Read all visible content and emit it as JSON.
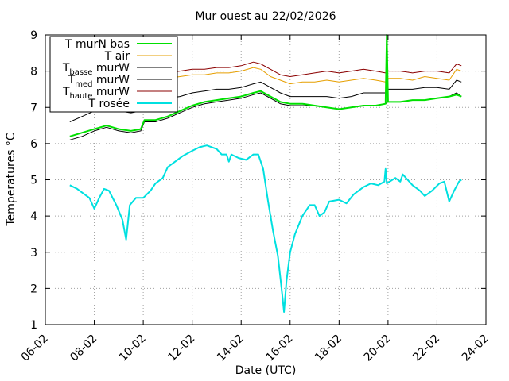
{
  "chart_data": {
    "type": "line",
    "title": "Mur ouest au 22/02/2026",
    "xlabel": "Date (UTC)",
    "ylabel": "Temperatures °C",
    "xlim": [
      0,
      18
    ],
    "ylim": [
      1,
      9
    ],
    "x_ticks": [
      {
        "v": 0,
        "label": "06-02"
      },
      {
        "v": 2,
        "label": "08-02"
      },
      {
        "v": 4,
        "label": "10-02"
      },
      {
        "v": 6,
        "label": "12-02"
      },
      {
        "v": 8,
        "label": "14-02"
      },
      {
        "v": 10,
        "label": "16-02"
      },
      {
        "v": 12,
        "label": "18-02"
      },
      {
        "v": 14,
        "label": "20-02"
      },
      {
        "v": 16,
        "label": "22-02"
      },
      {
        "v": 18,
        "label": "24-02"
      }
    ],
    "y_ticks": [
      1,
      2,
      3,
      4,
      5,
      6,
      7,
      8,
      9
    ],
    "grid": true,
    "legend_position": "top-left",
    "series": [
      {
        "name": "T murN bas",
        "color": "#00e000",
        "width": 2,
        "points": [
          [
            1,
            6.2
          ],
          [
            1.5,
            6.3
          ],
          [
            2,
            6.4
          ],
          [
            2.5,
            6.5
          ],
          [
            3,
            6.4
          ],
          [
            3.5,
            6.35
          ],
          [
            3.9,
            6.4
          ],
          [
            4.05,
            6.65
          ],
          [
            4.5,
            6.65
          ],
          [
            5,
            6.75
          ],
          [
            5.5,
            6.9
          ],
          [
            6,
            7.05
          ],
          [
            6.5,
            7.15
          ],
          [
            7,
            7.2
          ],
          [
            7.5,
            7.25
          ],
          [
            8,
            7.3
          ],
          [
            8.5,
            7.4
          ],
          [
            8.8,
            7.45
          ],
          [
            9.2,
            7.3
          ],
          [
            9.6,
            7.15
          ],
          [
            10,
            7.1
          ],
          [
            10.5,
            7.1
          ],
          [
            11,
            7.05
          ],
          [
            11.5,
            7.0
          ],
          [
            12,
            6.95
          ],
          [
            12.5,
            7.0
          ],
          [
            13,
            7.05
          ],
          [
            13.5,
            7.05
          ],
          [
            13.9,
            7.1
          ],
          [
            13.95,
            9.0
          ],
          [
            14.0,
            7.15
          ],
          [
            14.5,
            7.15
          ],
          [
            15,
            7.2
          ],
          [
            15.5,
            7.2
          ],
          [
            16,
            7.25
          ],
          [
            16.5,
            7.3
          ],
          [
            16.8,
            7.35
          ],
          [
            17,
            7.3
          ]
        ]
      },
      {
        "name": "T air",
        "color": "#e69f00",
        "width": 1,
        "points": [
          [
            1,
            7.0
          ],
          [
            1.5,
            7.2
          ],
          [
            2,
            7.35
          ],
          [
            2.5,
            7.45
          ],
          [
            3,
            7.3
          ],
          [
            3.5,
            7.25
          ],
          [
            3.9,
            7.3
          ],
          [
            4.05,
            7.65
          ],
          [
            4.5,
            7.7
          ],
          [
            5,
            7.8
          ],
          [
            5.5,
            7.85
          ],
          [
            6,
            7.9
          ],
          [
            6.5,
            7.9
          ],
          [
            7,
            7.95
          ],
          [
            7.5,
            7.95
          ],
          [
            8,
            8.0
          ],
          [
            8.5,
            8.1
          ],
          [
            8.8,
            8.05
          ],
          [
            9.2,
            7.85
          ],
          [
            9.6,
            7.75
          ],
          [
            10,
            7.65
          ],
          [
            10.5,
            7.7
          ],
          [
            11,
            7.7
          ],
          [
            11.5,
            7.75
          ],
          [
            12,
            7.7
          ],
          [
            12.5,
            7.75
          ],
          [
            13,
            7.8
          ],
          [
            13.5,
            7.75
          ],
          [
            13.9,
            7.7
          ],
          [
            14.0,
            7.8
          ],
          [
            14.5,
            7.8
          ],
          [
            15,
            7.75
          ],
          [
            15.5,
            7.85
          ],
          [
            16,
            7.8
          ],
          [
            16.5,
            7.75
          ],
          [
            16.8,
            8.05
          ],
          [
            17,
            8.0
          ]
        ]
      },
      {
        "name_main": "T",
        "name_sub": "basse",
        "name_rest": " murW",
        "color": "#000000",
        "width": 1,
        "points": [
          [
            1,
            6.1
          ],
          [
            1.5,
            6.2
          ],
          [
            2,
            6.35
          ],
          [
            2.5,
            6.45
          ],
          [
            3,
            6.35
          ],
          [
            3.5,
            6.3
          ],
          [
            3.9,
            6.35
          ],
          [
            4.05,
            6.6
          ],
          [
            4.5,
            6.6
          ],
          [
            5,
            6.7
          ],
          [
            5.5,
            6.85
          ],
          [
            6,
            7.0
          ],
          [
            6.5,
            7.1
          ],
          [
            7,
            7.15
          ],
          [
            7.5,
            7.2
          ],
          [
            8,
            7.25
          ],
          [
            8.5,
            7.35
          ],
          [
            8.8,
            7.4
          ],
          [
            9.2,
            7.25
          ],
          [
            9.6,
            7.1
          ],
          [
            10,
            7.05
          ],
          [
            10.5,
            7.05
          ],
          [
            11,
            7.05
          ],
          [
            11.5,
            7.0
          ],
          [
            12,
            6.95
          ],
          [
            12.5,
            7.0
          ],
          [
            13,
            7.05
          ],
          [
            13.5,
            7.05
          ],
          [
            13.9,
            7.1
          ],
          [
            14.0,
            7.15
          ],
          [
            14.5,
            7.15
          ],
          [
            15,
            7.2
          ],
          [
            15.5,
            7.2
          ],
          [
            16,
            7.25
          ],
          [
            16.5,
            7.3
          ],
          [
            16.8,
            7.4
          ],
          [
            17,
            7.3
          ]
        ]
      },
      {
        "name_main": "T",
        "name_sub": "med",
        "name_rest": " murW",
        "color": "#000000",
        "width": 1,
        "points": [
          [
            1,
            6.6
          ],
          [
            1.5,
            6.75
          ],
          [
            2,
            6.9
          ],
          [
            2.5,
            7.0
          ],
          [
            3,
            6.9
          ],
          [
            3.5,
            6.85
          ],
          [
            3.9,
            6.9
          ],
          [
            4.05,
            7.1
          ],
          [
            4.5,
            7.15
          ],
          [
            5,
            7.25
          ],
          [
            5.5,
            7.3
          ],
          [
            6,
            7.4
          ],
          [
            6.5,
            7.45
          ],
          [
            7,
            7.5
          ],
          [
            7.5,
            7.5
          ],
          [
            8,
            7.55
          ],
          [
            8.5,
            7.65
          ],
          [
            8.8,
            7.7
          ],
          [
            9.2,
            7.55
          ],
          [
            9.6,
            7.4
          ],
          [
            10,
            7.3
          ],
          [
            10.5,
            7.3
          ],
          [
            11,
            7.3
          ],
          [
            11.5,
            7.3
          ],
          [
            12,
            7.25
          ],
          [
            12.5,
            7.3
          ],
          [
            13,
            7.4
          ],
          [
            13.5,
            7.4
          ],
          [
            13.9,
            7.4
          ],
          [
            14.0,
            7.5
          ],
          [
            14.5,
            7.5
          ],
          [
            15,
            7.5
          ],
          [
            15.5,
            7.55
          ],
          [
            16,
            7.55
          ],
          [
            16.5,
            7.5
          ],
          [
            16.8,
            7.75
          ],
          [
            17,
            7.7
          ]
        ]
      },
      {
        "name_main": "T",
        "name_sub": "haute",
        "name_rest": " murW",
        "color": "#8b0000",
        "width": 1,
        "points": [
          [
            1,
            7.3
          ],
          [
            1.5,
            7.5
          ],
          [
            2,
            7.6
          ],
          [
            2.5,
            7.7
          ],
          [
            3,
            7.6
          ],
          [
            3.5,
            7.5
          ],
          [
            3.9,
            7.55
          ],
          [
            4.05,
            7.85
          ],
          [
            4.5,
            7.9
          ],
          [
            5,
            7.95
          ],
          [
            5.5,
            8.0
          ],
          [
            6,
            8.05
          ],
          [
            6.5,
            8.05
          ],
          [
            7,
            8.1
          ],
          [
            7.5,
            8.1
          ],
          [
            8,
            8.15
          ],
          [
            8.5,
            8.25
          ],
          [
            8.8,
            8.2
          ],
          [
            9.2,
            8.05
          ],
          [
            9.6,
            7.9
          ],
          [
            10,
            7.85
          ],
          [
            10.5,
            7.9
          ],
          [
            11,
            7.95
          ],
          [
            11.5,
            8.0
          ],
          [
            12,
            7.95
          ],
          [
            12.5,
            8.0
          ],
          [
            13,
            8.05
          ],
          [
            13.5,
            8.0
          ],
          [
            13.9,
            7.95
          ],
          [
            14.0,
            8.0
          ],
          [
            14.5,
            8.0
          ],
          [
            15,
            7.95
          ],
          [
            15.5,
            8.0
          ],
          [
            16,
            8.0
          ],
          [
            16.5,
            7.95
          ],
          [
            16.8,
            8.2
          ],
          [
            17,
            8.15
          ]
        ]
      },
      {
        "name": "T rosée",
        "color": "#00e0e0",
        "width": 2,
        "points": [
          [
            1,
            4.85
          ],
          [
            1.3,
            4.75
          ],
          [
            1.6,
            4.6
          ],
          [
            1.8,
            4.5
          ],
          [
            2,
            4.2
          ],
          [
            2.2,
            4.5
          ],
          [
            2.4,
            4.75
          ],
          [
            2.6,
            4.7
          ],
          [
            2.9,
            4.3
          ],
          [
            3.15,
            3.9
          ],
          [
            3.3,
            3.35
          ],
          [
            3.45,
            4.3
          ],
          [
            3.7,
            4.5
          ],
          [
            4,
            4.5
          ],
          [
            4.3,
            4.7
          ],
          [
            4.5,
            4.9
          ],
          [
            4.8,
            5.05
          ],
          [
            5,
            5.35
          ],
          [
            5.3,
            5.5
          ],
          [
            5.6,
            5.65
          ],
          [
            6,
            5.8
          ],
          [
            6.3,
            5.9
          ],
          [
            6.6,
            5.95
          ],
          [
            7,
            5.85
          ],
          [
            7.2,
            5.7
          ],
          [
            7.4,
            5.7
          ],
          [
            7.5,
            5.5
          ],
          [
            7.6,
            5.7
          ],
          [
            7.9,
            5.6
          ],
          [
            8.2,
            5.55
          ],
          [
            8.5,
            5.7
          ],
          [
            8.7,
            5.7
          ],
          [
            8.9,
            5.3
          ],
          [
            9.1,
            4.4
          ],
          [
            9.3,
            3.6
          ],
          [
            9.5,
            2.9
          ],
          [
            9.6,
            2.3
          ],
          [
            9.7,
            1.7
          ],
          [
            9.75,
            1.35
          ],
          [
            9.85,
            2.2
          ],
          [
            10,
            3.0
          ],
          [
            10.2,
            3.5
          ],
          [
            10.5,
            4.0
          ],
          [
            10.8,
            4.3
          ],
          [
            11,
            4.3
          ],
          [
            11.2,
            4.0
          ],
          [
            11.4,
            4.1
          ],
          [
            11.6,
            4.4
          ],
          [
            12,
            4.45
          ],
          [
            12.3,
            4.35
          ],
          [
            12.6,
            4.6
          ],
          [
            13,
            4.8
          ],
          [
            13.3,
            4.9
          ],
          [
            13.6,
            4.85
          ],
          [
            13.85,
            4.95
          ],
          [
            13.9,
            5.3
          ],
          [
            13.95,
            4.9
          ],
          [
            14.3,
            5.05
          ],
          [
            14.5,
            4.95
          ],
          [
            14.6,
            5.15
          ],
          [
            14.8,
            5.0
          ],
          [
            15,
            4.85
          ],
          [
            15.3,
            4.7
          ],
          [
            15.5,
            4.55
          ],
          [
            15.8,
            4.7
          ],
          [
            16.1,
            4.9
          ],
          [
            16.3,
            4.95
          ],
          [
            16.5,
            4.4
          ],
          [
            16.7,
            4.7
          ],
          [
            16.9,
            4.95
          ],
          [
            17,
            5.0
          ]
        ]
      }
    ]
  }
}
